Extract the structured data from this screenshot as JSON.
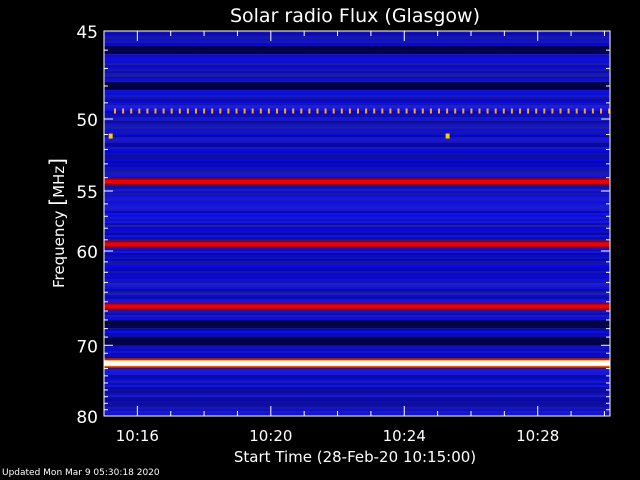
{
  "chart_data": {
    "type": "heatmap",
    "title": "Solar radio Flux (Glasgow)",
    "xlabel": "Start Time (28-Feb-20 10:15:00)",
    "ylabel_prefix": "Frequency ",
    "ylabel_unit": "MHz",
    "x_range_minutes": [
      "10:15:00",
      "10:30:10"
    ],
    "x_ticks": [
      "10:16",
      "10:20",
      "10:24",
      "10:28"
    ],
    "x_tick_minutes": [
      16,
      20,
      24,
      28
    ],
    "y_range": [
      45,
      80
    ],
    "y_ticks": [
      45,
      50,
      55,
      60,
      70,
      80
    ],
    "y_scale": "reciprocal",
    "colormap": [
      "#000000",
      "#0000b0",
      "#2a2ae0",
      "#b0001a",
      "#ff0000",
      "#ffff99",
      "#ffffff"
    ],
    "emission_bands_mhz": [
      {
        "freq": 49.5,
        "intensity": "dotted-orange"
      },
      {
        "freq": 54.3,
        "intensity": "red"
      },
      {
        "freq": 59.4,
        "intensity": "red"
      },
      {
        "freq": 65.5,
        "intensity": "red"
      },
      {
        "freq": 72.3,
        "intensity": "saturated-white"
      }
    ],
    "dark_bands_mhz": [
      46.0,
      48.0,
      67.5,
      69.5
    ],
    "bursts": [
      {
        "time": "10:15:12",
        "freq": 51.1
      },
      {
        "time": "10:25:18",
        "freq": 51.1
      }
    ]
  },
  "footer": {
    "updated": "Updated Mon Mar  9 05:30:18 2020"
  },
  "colors": {
    "background": "#000000",
    "axis": "#ffffff",
    "plot_bg": "#1a1acc"
  }
}
